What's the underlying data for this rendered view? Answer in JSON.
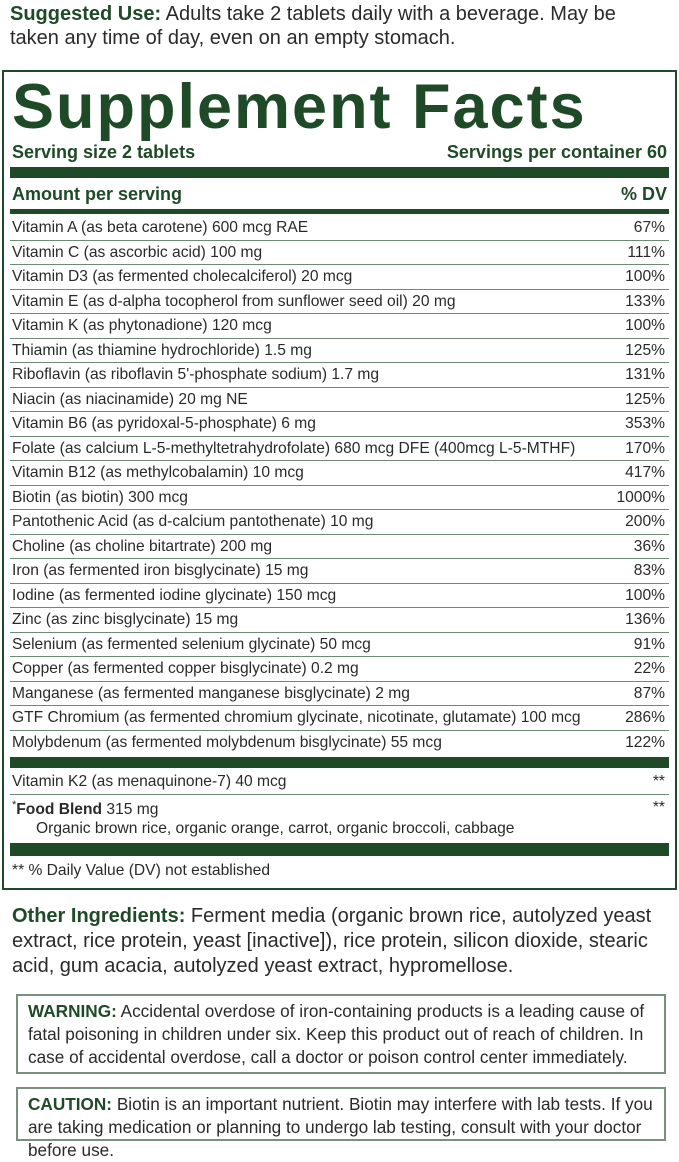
{
  "suggested_use": {
    "label": "Suggested Use:",
    "text": "Adults take 2 tablets daily with a beverage. May be taken any time of day, even on an empty stomach."
  },
  "facts": {
    "title": "Supplement Facts",
    "serving_size": "Serving size 2 tablets",
    "servings_per_container": "Servings per container 60",
    "amount_header": "Amount per serving",
    "dv_header": "% DV",
    "rows": [
      [
        "Vitamin A (as beta carotene) 600 mcg RAE",
        "67%"
      ],
      [
        "Vitamin C (as ascorbic acid) 100 mg",
        "111%"
      ],
      [
        "Vitamin D3 (as fermented cholecalciferol) 20 mcg",
        "100%"
      ],
      [
        "Vitamin E (as d-alpha tocopherol from sunflower seed oil) 20 mg",
        "133%"
      ],
      [
        "Vitamin K (as phytonadione) 120 mcg",
        "100%"
      ],
      [
        "Thiamin (as thiamine hydrochloride) 1.5 mg",
        "125%"
      ],
      [
        "Riboflavin (as riboflavin 5'-phosphate sodium) 1.7 mg",
        "131%"
      ],
      [
        "Niacin (as niacinamide) 20 mg NE",
        "125%"
      ],
      [
        "Vitamin B6 (as pyridoxal-5-phosphate) 6 mg",
        "353%"
      ],
      [
        "Folate (as calcium L-5-methyltetrahydrofolate) 680 mcg DFE (400mcg L-5-MTHF)",
        "170%"
      ],
      [
        "Vitamin B12 (as methylcobalamin) 10 mcg",
        "417%"
      ],
      [
        "Biotin (as biotin) 300 mcg",
        "1000%"
      ],
      [
        "Pantothenic Acid (as d-calcium pantothenate) 10 mg",
        "200%"
      ],
      [
        "Choline (as choline bitartrate) 200 mg",
        "36%"
      ],
      [
        "Iron (as fermented iron bisglycinate) 15 mg",
        "83%"
      ],
      [
        "Iodine (as fermented iodine glycinate) 150 mcg",
        "100%"
      ],
      [
        "Zinc (as zinc bisglycinate) 15 mg",
        "136%"
      ],
      [
        "Selenium (as fermented selenium glycinate) 50 mcg",
        "91%"
      ],
      [
        "Copper (as fermented copper bisglycinate) 0.2 mg",
        "22%"
      ],
      [
        "Manganese (as fermented manganese bisglycinate) 2 mg",
        "87%"
      ],
      [
        "GTF Chromium (as fermented chromium glycinate, nicotinate, glutamate) 100 mcg",
        "286%"
      ],
      [
        "Molybdenum (as fermented molybdenum bisglycinate) 55 mcg",
        "122%"
      ]
    ],
    "extra_row": [
      "Vitamin K2 (as menaquinone-7) 40 mcg",
      "**"
    ],
    "food_blend": {
      "mark": "*",
      "name": "Food Blend",
      "amount": "315 mg",
      "dv": "**",
      "ingredients": "Organic brown rice, organic orange, carrot, organic broccoli, cabbage"
    },
    "footnote": "** % Daily Value (DV) not established"
  },
  "other_ingredients": {
    "label": "Other Ingredients:",
    "text": "Ferment media (organic brown rice, autolyzed yeast extract, rice protein, yeast [inactive]), rice protein, silicon dioxide, stearic acid, gum acacia, autolyzed yeast extract, hypromellose."
  },
  "warning": {
    "label": "WARNING:",
    "text": "Accidental overdose of iron-containing products is a leading cause of fatal poisoning in children under six. Keep this product out of reach of children. In case of accidental overdose, call a doctor or poison control center immediately."
  },
  "caution": {
    "label": "CAUTION:",
    "text": "Biotin is an important nutrient. Biotin may interfere with lab tests. If you are taking medication or planning to undergo lab testing, consult with your doctor before use."
  }
}
